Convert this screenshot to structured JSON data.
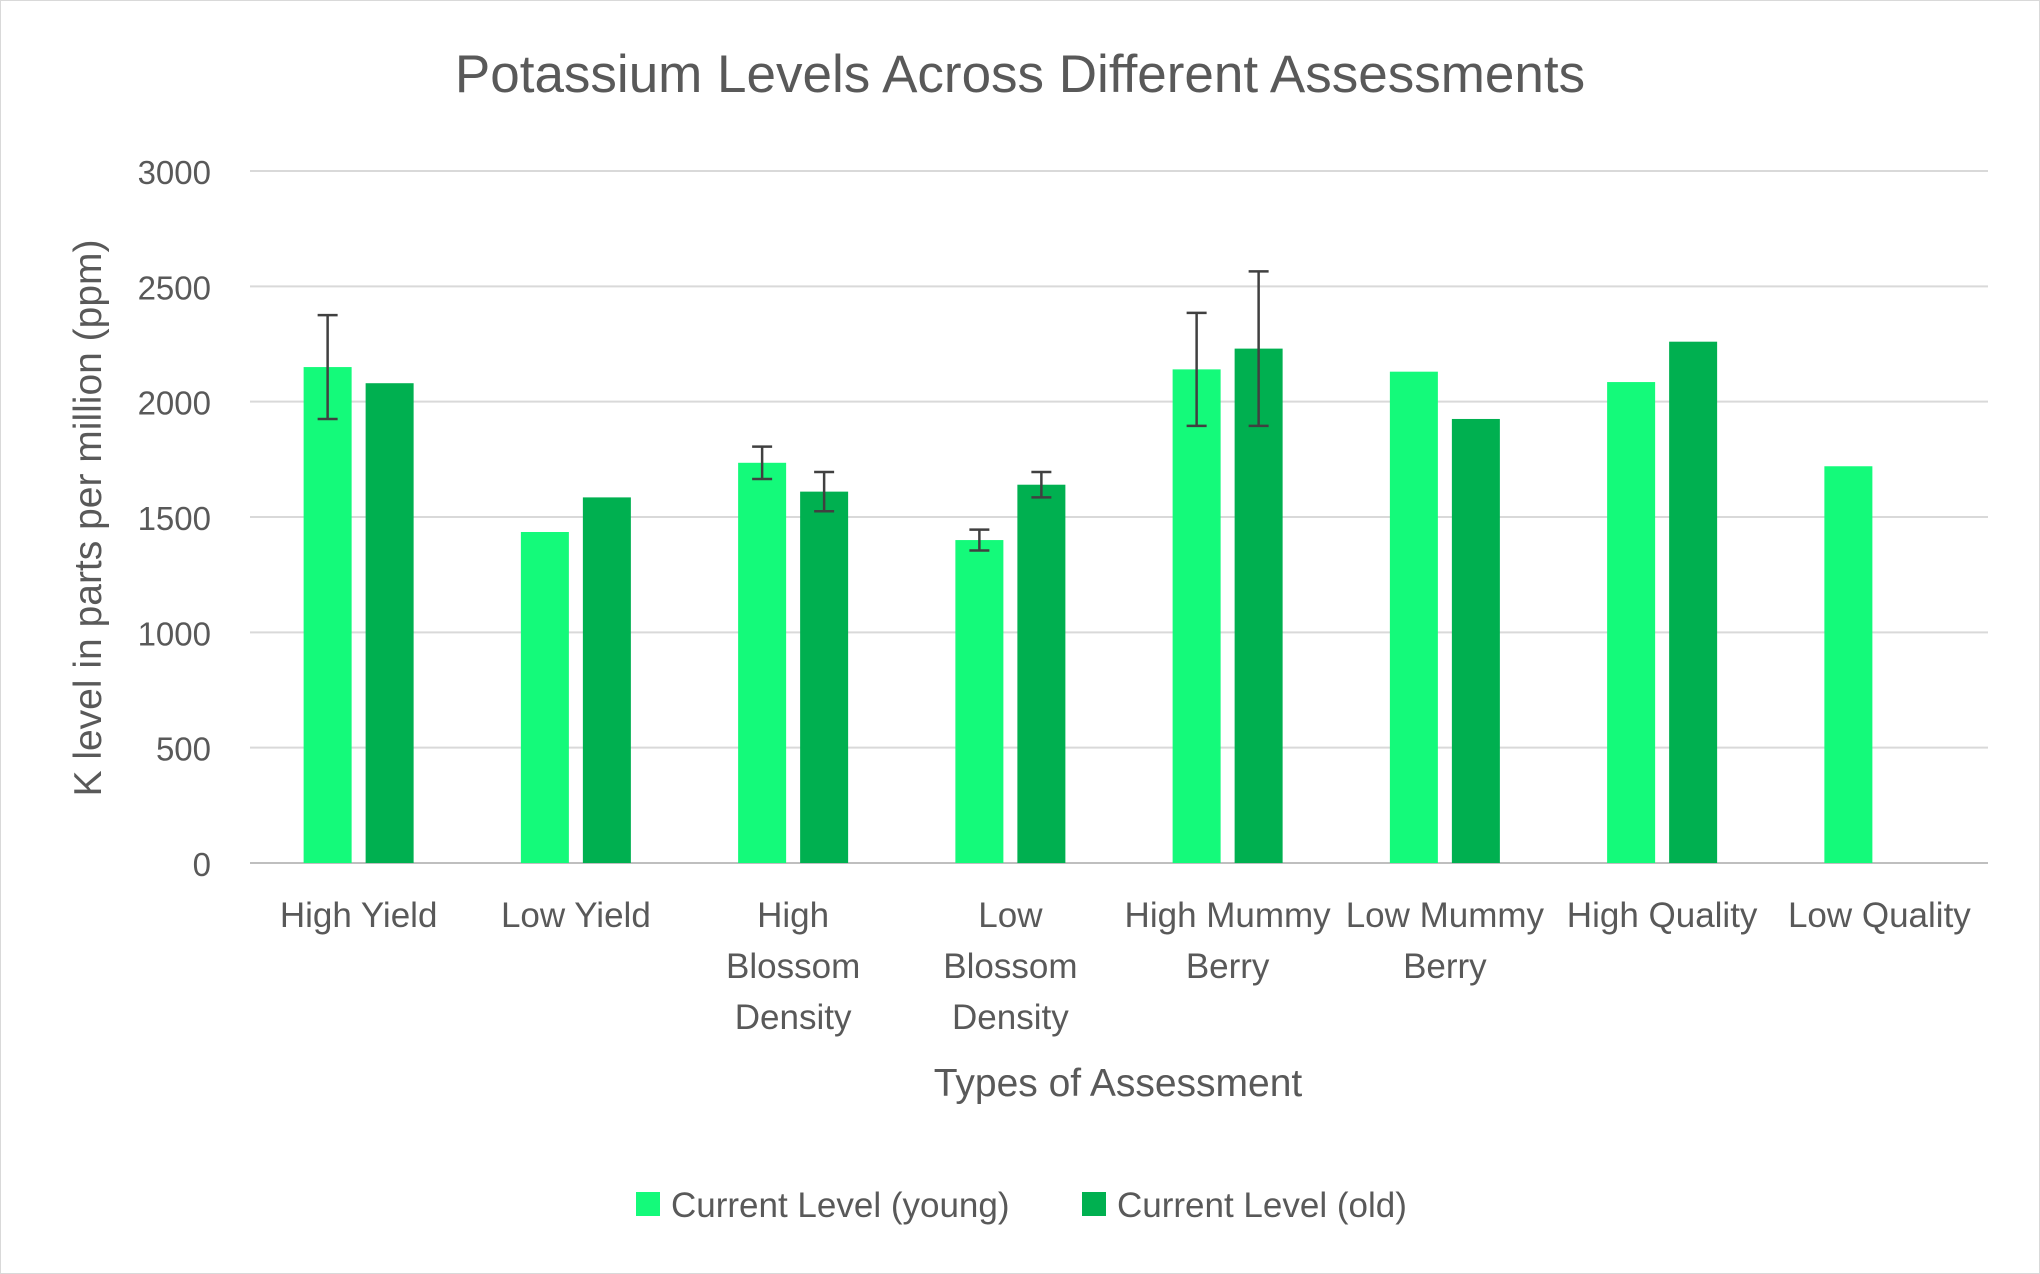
{
  "chart_data": {
    "type": "bar",
    "title": "Potassium Levels Across Different Assessments",
    "xlabel": "Types of Assessment",
    "ylabel": "K level in parts per million (ppm)",
    "ylim": [
      0,
      3000
    ],
    "yticks": [
      "0",
      "500",
      "1000",
      "1500",
      "2000",
      "2500",
      "3000"
    ],
    "grid": true,
    "legend_position": "bottom",
    "categories": [
      [
        "High Yield"
      ],
      [
        "Low Yield"
      ],
      [
        "High",
        "Blossom",
        "Density"
      ],
      [
        "Low",
        "Blossom",
        "Density"
      ],
      [
        "High Mummy",
        "Berry"
      ],
      [
        "Low Mummy",
        "Berry"
      ],
      [
        "High Quality"
      ],
      [
        "Low Quality"
      ]
    ],
    "series": [
      {
        "name": "Current Level (young)",
        "color": "#14fa7a",
        "values": [
          2150,
          1435,
          1735,
          1400,
          2140,
          2130,
          2085,
          1720
        ],
        "error": [
          225,
          null,
          70,
          45,
          245,
          null,
          null,
          null
        ]
      },
      {
        "name": "Current Level (old)",
        "color": "#00b050",
        "values": [
          2080,
          1585,
          1610,
          1640,
          2230,
          1925,
          2260,
          null
        ],
        "error": [
          null,
          null,
          85,
          55,
          335,
          null,
          null,
          null
        ]
      }
    ]
  }
}
